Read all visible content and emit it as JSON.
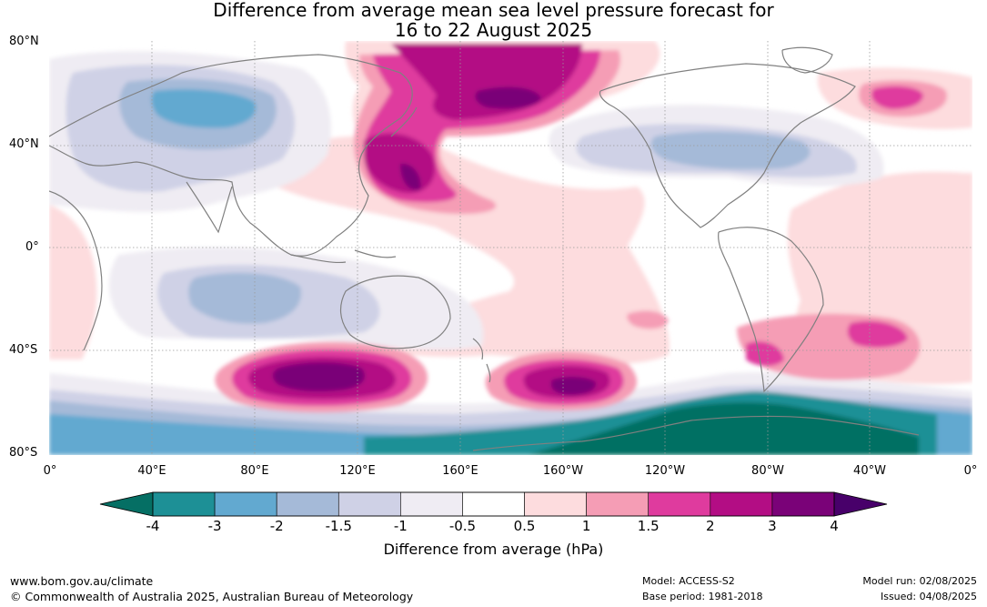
{
  "title": {
    "line1": "Difference from average mean sea level pressure forecast for",
    "line2": "16 to 22 August 2025"
  },
  "axes": {
    "lat_labels": [
      "80°N",
      "40°N",
      "0°",
      "40°S",
      "80°S"
    ],
    "lon_labels": [
      "0°",
      "40°E",
      "80°E",
      "120°E",
      "160°E",
      "160°W",
      "120°W",
      "80°W",
      "40°W",
      "0°"
    ]
  },
  "colorbar": {
    "label": "Difference from average (hPa)",
    "ticks": [
      "-4",
      "-3",
      "-2",
      "-1.5",
      "-1",
      "-0.5",
      "0.5",
      "1",
      "1.5",
      "2",
      "3",
      "4"
    ],
    "colors": [
      "#1d9096",
      "#62a9d0",
      "#a5bad8",
      "#cfd1e6",
      "#efecf3",
      "#ffffff",
      "#fddcde",
      "#f59db5",
      "#df3b9e",
      "#b30d84",
      "#7a0278"
    ],
    "under_color": "#056f64",
    "over_color": "#48006a"
  },
  "footer": {
    "website": "www.bom.gov.au/climate",
    "copyright": "© Commonwealth of Australia 2025, Australian Bureau of Meteorology",
    "model": "Model: ACCESS-S2",
    "base_period": "Base period: 1981-2018",
    "model_run": "Model run: 02/08/2025",
    "issued": "Issued: 04/08/2025"
  }
}
